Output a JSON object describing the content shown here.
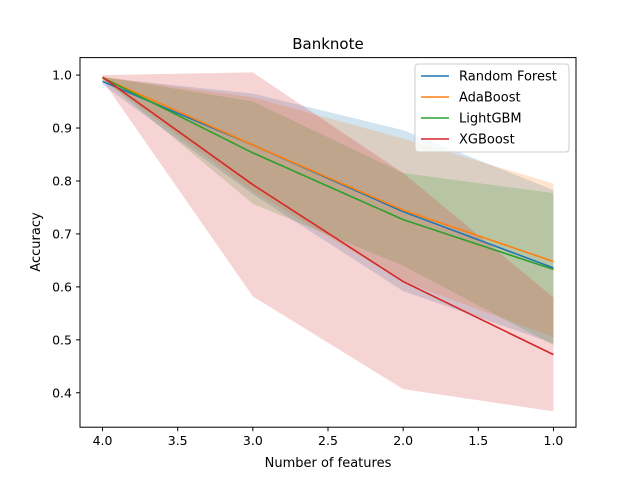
{
  "chart_data": {
    "type": "line",
    "title": "Banknote",
    "xlabel": "Number of features",
    "ylabel": "Accuracy",
    "x": [
      4.0,
      3.0,
      2.0,
      1.0
    ],
    "xlim": [
      4.15,
      0.85
    ],
    "ylim": [
      0.335,
      1.033
    ],
    "xticks": [
      4.0,
      3.5,
      3.0,
      2.5,
      2.0,
      1.5,
      1.0
    ],
    "xtick_labels": [
      "4.0",
      "3.5",
      "3.0",
      "2.5",
      "2.0",
      "1.5",
      "1.0"
    ],
    "yticks": [
      0.4,
      0.5,
      0.6,
      0.7,
      0.8,
      0.9,
      1.0
    ],
    "ytick_labels": [
      "0.4",
      "0.5",
      "0.6",
      "0.7",
      "0.8",
      "0.9",
      "1.0"
    ],
    "grid": false,
    "legend_position": "top-right",
    "series": [
      {
        "name": "Random Forest",
        "color": "#1f77b4",
        "values": [
          0.988,
          0.868,
          0.742,
          0.636
        ],
        "lower": [
          0.982,
          0.775,
          0.592,
          0.493
        ],
        "upper": [
          0.995,
          0.965,
          0.896,
          0.783
        ]
      },
      {
        "name": "AdaBoost",
        "color": "#ff7f0e",
        "values": [
          0.995,
          0.868,
          0.745,
          0.648
        ],
        "lower": [
          0.993,
          0.78,
          0.61,
          0.505
        ],
        "upper": [
          0.997,
          0.958,
          0.88,
          0.795
        ]
      },
      {
        "name": "LightGBM",
        "color": "#2ca02c",
        "values": [
          0.995,
          0.853,
          0.727,
          0.633
        ],
        "lower": [
          0.993,
          0.757,
          0.64,
          0.49
        ],
        "upper": [
          0.997,
          0.95,
          0.815,
          0.777
        ]
      },
      {
        "name": "XGBoost",
        "color": "#d62728",
        "values": [
          0.996,
          0.793,
          0.61,
          0.472
        ],
        "lower": [
          0.99,
          0.582,
          0.407,
          0.365
        ],
        "upper": [
          1.0,
          1.005,
          0.815,
          0.58
        ]
      }
    ]
  }
}
